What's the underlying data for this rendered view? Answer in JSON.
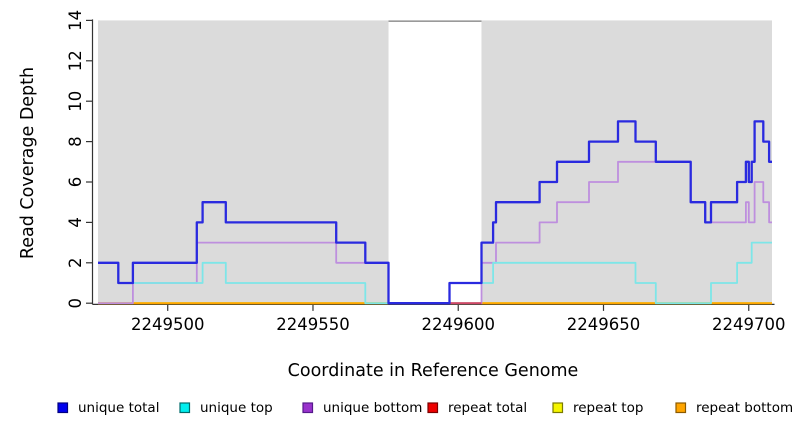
{
  "chart_data": {
    "type": "line",
    "subtype": "step",
    "title": "",
    "xlabel": "Coordinate in Reference Genome",
    "ylabel": "Read Coverage Depth",
    "xlim": [
      2249476,
      2249708
    ],
    "ylim": [
      0,
      14
    ],
    "x_ticks": [
      "2249500",
      "2249550",
      "2249600",
      "2249650",
      "2249700"
    ],
    "x_tick_values": [
      2249500,
      2249550,
      2249600,
      2249650,
      2249700
    ],
    "y_ticks": [
      "0",
      "2",
      "4",
      "6",
      "8",
      "10",
      "12",
      "14"
    ],
    "y_tick_values": [
      0,
      2,
      4,
      6,
      8,
      10,
      12,
      14
    ],
    "grid": "off",
    "plot_bg_color": "#DBDBDB",
    "figure_bg_color": "#FFFFFF",
    "axis_color": "#333333",
    "gap_region": {
      "x_start": 2249576,
      "x_end": 2249608,
      "color": "#FFFFFF",
      "top_border_color": "#9A9A9A"
    },
    "series": [
      {
        "name": "repeat top",
        "color": "#F0F000",
        "width": 1.8,
        "points": [
          [
            2249476,
            0
          ]
        ]
      },
      {
        "name": "repeat bottom",
        "color": "#FFA500",
        "width": 2.0,
        "points": [
          [
            2249476,
            0
          ]
        ],
        "draw_ranges": [
          [
            2249476,
            2249576
          ],
          [
            2249608,
            2249708
          ]
        ]
      },
      {
        "name": "unique bottom",
        "color": "#BE8FDE",
        "width": 1.8,
        "points": [
          [
            2249476,
            0
          ],
          [
            2249488,
            1
          ],
          [
            2249510,
            3
          ],
          [
            2249558,
            2
          ],
          [
            2249576,
            0
          ],
          [
            2249608,
            2
          ],
          [
            2249613,
            3
          ],
          [
            2249628,
            4
          ],
          [
            2249634,
            5
          ],
          [
            2249645,
            6
          ],
          [
            2249655,
            7
          ],
          [
            2249680,
            5
          ],
          [
            2249685,
            4
          ],
          [
            2249699,
            5
          ],
          [
            2249700,
            4
          ],
          [
            2249702,
            6
          ],
          [
            2249705,
            5
          ],
          [
            2249707,
            4
          ]
        ]
      },
      {
        "name": "unique top",
        "color": "#7DE6E8",
        "width": 1.8,
        "points": [
          [
            2249476,
            2
          ],
          [
            2249483,
            1
          ],
          [
            2249512,
            2
          ],
          [
            2249520,
            1
          ],
          [
            2249568,
            0
          ],
          [
            2249597,
            1
          ],
          [
            2249612,
            2
          ],
          [
            2249661,
            1
          ],
          [
            2249668,
            0
          ],
          [
            2249687,
            1
          ],
          [
            2249696,
            2
          ],
          [
            2249701,
            3
          ]
        ]
      },
      {
        "name": "repeat total",
        "color": "#D0486A",
        "width": 1.8,
        "points": [
          [
            2249476,
            0
          ]
        ],
        "draw_ranges": [
          [
            2249576,
            2249608
          ]
        ]
      },
      {
        "name": "unique total",
        "color": "#2A2ADF",
        "width": 2.3,
        "points": [
          [
            2249476,
            2
          ],
          [
            2249483,
            1
          ],
          [
            2249488,
            2
          ],
          [
            2249510,
            4
          ],
          [
            2249512,
            5
          ],
          [
            2249520,
            4
          ],
          [
            2249558,
            3
          ],
          [
            2249568,
            2
          ],
          [
            2249576,
            0
          ],
          [
            2249597,
            1
          ],
          [
            2249608,
            3
          ],
          [
            2249612,
            4
          ],
          [
            2249613,
            5
          ],
          [
            2249628,
            6
          ],
          [
            2249634,
            7
          ],
          [
            2249645,
            8
          ],
          [
            2249655,
            9
          ],
          [
            2249661,
            8
          ],
          [
            2249668,
            7
          ],
          [
            2249680,
            5
          ],
          [
            2249685,
            4
          ],
          [
            2249687,
            5
          ],
          [
            2249696,
            6
          ],
          [
            2249699,
            7
          ],
          [
            2249700,
            6
          ],
          [
            2249701,
            7
          ],
          [
            2249702,
            9
          ],
          [
            2249705,
            8
          ],
          [
            2249707,
            7
          ]
        ]
      }
    ],
    "legend_position": "bottom",
    "legend": [
      {
        "label": "unique total",
        "fill": "#0000EE",
        "border": "#000080"
      },
      {
        "label": "unique top",
        "fill": "#00EEEE",
        "border": "#006B6B"
      },
      {
        "label": "unique bottom",
        "fill": "#9932CC",
        "border": "#551A8B"
      },
      {
        "label": "repeat total",
        "fill": "#EE0000",
        "border": "#7A0000"
      },
      {
        "label": "repeat top",
        "fill": "#F5F500",
        "border": "#7A7A00"
      },
      {
        "label": "repeat bottom",
        "fill": "#FFA500",
        "border": "#8B5A00"
      }
    ]
  }
}
